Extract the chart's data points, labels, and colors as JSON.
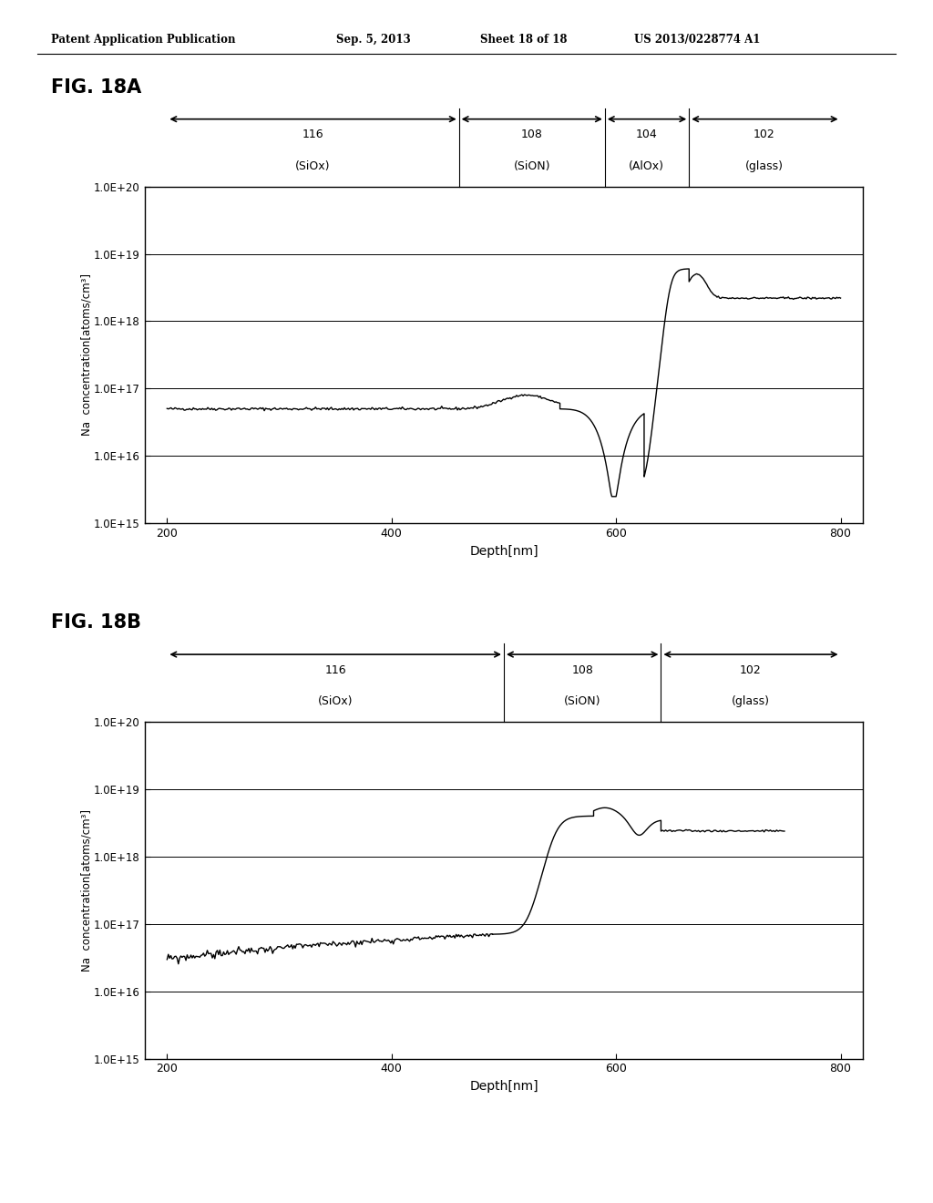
{
  "header_left": "Patent Application Publication",
  "header_mid1": "Sep. 5, 2013",
  "header_mid2": "Sheet 18 of 18",
  "header_right": "US 2013/0228774 A1",
  "fig_label_A": "FIG. 18A",
  "fig_label_B": "FIG. 18B",
  "xlabel": "Depth[nm]",
  "ylabel": "Na  concentration[atoms/cm³]",
  "xlim": [
    180,
    820
  ],
  "xticks": [
    200,
    400,
    600,
    800
  ],
  "ytick_labels": [
    "1.0E+15",
    "1.0E+16",
    "1.0E+17",
    "1.0E+18",
    "1.0E+19",
    "1.0E+20"
  ],
  "background": "#ffffff",
  "line_color": "#000000",
  "figA_bounds": [
    200,
    460,
    590,
    665,
    800
  ],
  "figA_nums": [
    "116",
    "108",
    "104",
    "102"
  ],
  "figA_subs": [
    "(SiOx)",
    "(SiON)",
    "(AlOx)",
    "(glass)"
  ],
  "figA_centers": [
    330,
    525,
    627,
    732
  ],
  "figB_bounds": [
    200,
    500,
    640,
    800
  ],
  "figB_nums": [
    "116",
    "108",
    "102"
  ],
  "figB_subs": [
    "(SiOx)",
    "(SiON)",
    "(glass)"
  ],
  "figB_centers": [
    350,
    570,
    720
  ]
}
